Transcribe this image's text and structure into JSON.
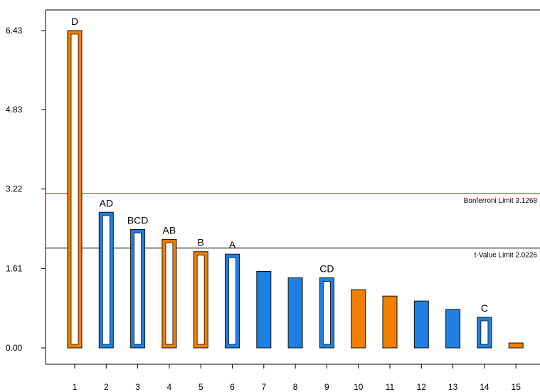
{
  "chart_data": {
    "type": "bar",
    "title": "",
    "xlabel": "",
    "ylabel": "",
    "categories": [
      "1",
      "2",
      "3",
      "4",
      "5",
      "6",
      "7",
      "8",
      "9",
      "10",
      "11",
      "12",
      "13",
      "14",
      "15"
    ],
    "values": [
      6.43,
      2.75,
      2.4,
      2.2,
      1.95,
      1.9,
      1.55,
      1.42,
      1.42,
      1.18,
      1.05,
      0.95,
      0.78,
      0.62,
      0.1
    ],
    "effect_labels": [
      "D",
      "AD",
      "BCD",
      "AB",
      "B",
      "A",
      "",
      "",
      "CD",
      "",
      "",
      "",
      "",
      "C",
      ""
    ],
    "bar_colors": [
      "#f07f00",
      "#1e80e0",
      "#1e80e0",
      "#f07f00",
      "#f07f00",
      "#1e80e0",
      "#1e80e0",
      "#1e80e0",
      "#1e80e0",
      "#f07f00",
      "#f07f00",
      "#1e80e0",
      "#1e80e0",
      "#1e80e0",
      "#f07f00"
    ],
    "bar_style": [
      "outlined",
      "outlined",
      "outlined",
      "outlined",
      "outlined",
      "outlined",
      "filled",
      "filled",
      "outlined",
      "filled",
      "filled",
      "filled",
      "filled",
      "outlined",
      "filled"
    ],
    "yticks": [
      "0.00",
      "1.61",
      "3.22",
      "4.83",
      "6.43"
    ],
    "ytick_values": [
      0.0,
      1.61,
      3.22,
      4.83,
      6.43
    ],
    "ylim": [
      0,
      6.84
    ],
    "grid": false,
    "reference_lines": [
      {
        "label": "Bonferroni Limit 3.1268",
        "value": 3.1268,
        "color": "#e00000"
      },
      {
        "label": "t-Value Limit 2.0226",
        "value": 2.0226,
        "color": "#000000"
      }
    ]
  }
}
